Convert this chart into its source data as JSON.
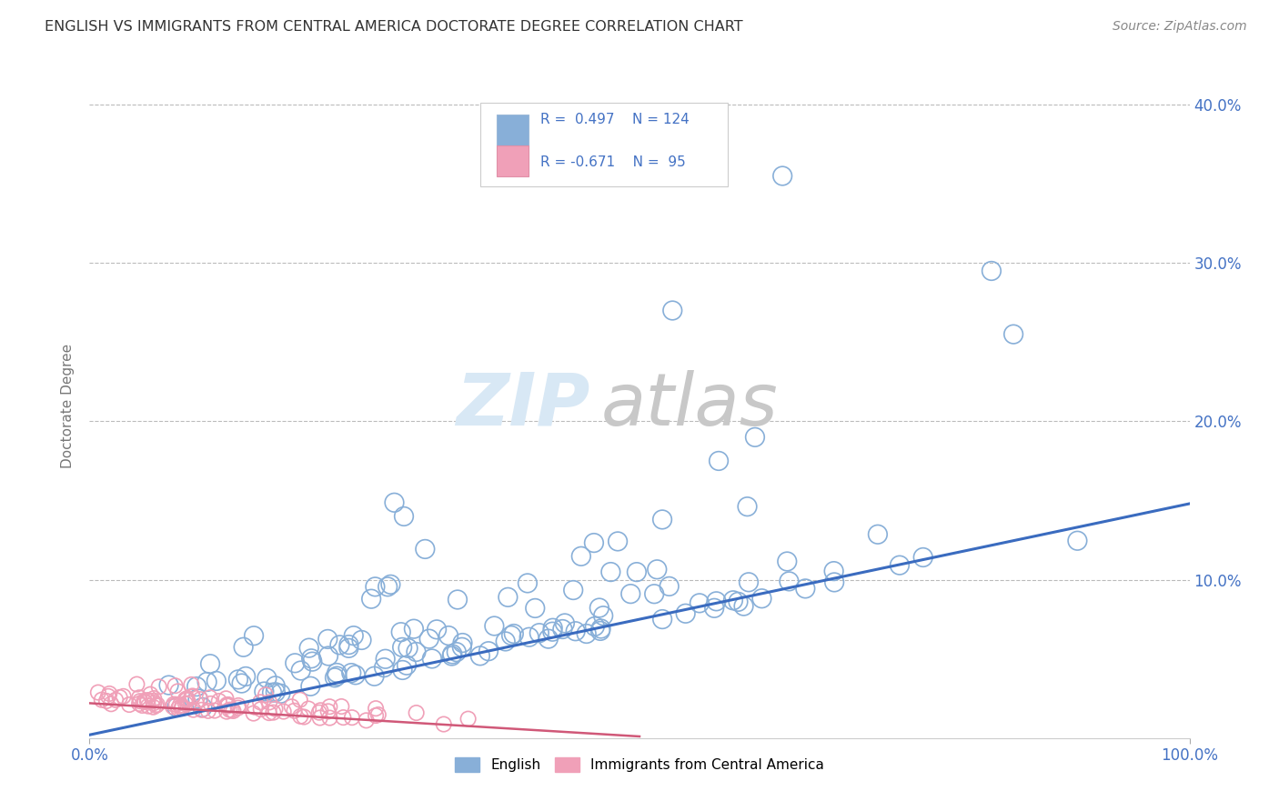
{
  "title": "ENGLISH VS IMMIGRANTS FROM CENTRAL AMERICA DOCTORATE DEGREE CORRELATION CHART",
  "source": "Source: ZipAtlas.com",
  "ylabel": "Doctorate Degree",
  "xlim": [
    0,
    1.0
  ],
  "ylim": [
    0,
    0.42
  ],
  "yticks": [
    0.0,
    0.1,
    0.2,
    0.3,
    0.4
  ],
  "ytick_labels": [
    "",
    "10.0%",
    "20.0%",
    "30.0%",
    "40.0%"
  ],
  "xticks": [
    0.0,
    1.0
  ],
  "xtick_labels": [
    "0.0%",
    "100.0%"
  ],
  "legend_r1": "R =  0.497",
  "legend_n1": "N = 124",
  "legend_r2": "R = -0.671",
  "legend_n2": "N =  95",
  "english_edge_color": "#88afd8",
  "english_line_color": "#3a6bbf",
  "immigrant_edge_color": "#f0a0b8",
  "immigrant_line_color": "#d05878",
  "legend_blue_color": "#4472c4",
  "legend_text_color": "#333333",
  "background_color": "#ffffff",
  "grid_color": "#bbbbbb",
  "watermark_zip_color": "#d8e8f5",
  "watermark_atlas_color": "#c8c8c8",
  "title_color": "#333333",
  "source_color": "#888888",
  "axis_label_color": "#777777",
  "tick_label_color": "#4472c4"
}
